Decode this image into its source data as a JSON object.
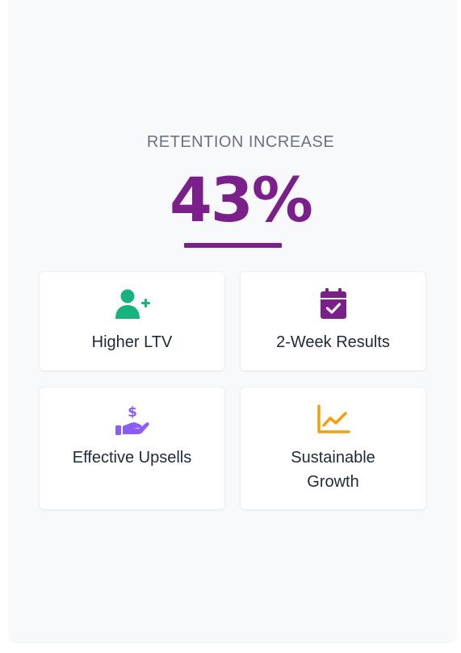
{
  "hero": {
    "eyebrow": "RETENTION INCREASE",
    "stat": "43%",
    "accent_color": "#7b1f8a"
  },
  "cards": [
    {
      "icon": "user-plus-icon",
      "icon_color": "#16b37c",
      "label": "Higher LTV"
    },
    {
      "icon": "calendar-check-icon",
      "icon_color": "#7b1f8a",
      "label": "2-Week Results"
    },
    {
      "icon": "hand-dollar-icon",
      "icon_color": "#8b5cf6",
      "label": "Effective Upsells"
    },
    {
      "icon": "chart-line-icon",
      "icon_color": "#f59e0b",
      "label": "Sustainable Growth"
    }
  ]
}
